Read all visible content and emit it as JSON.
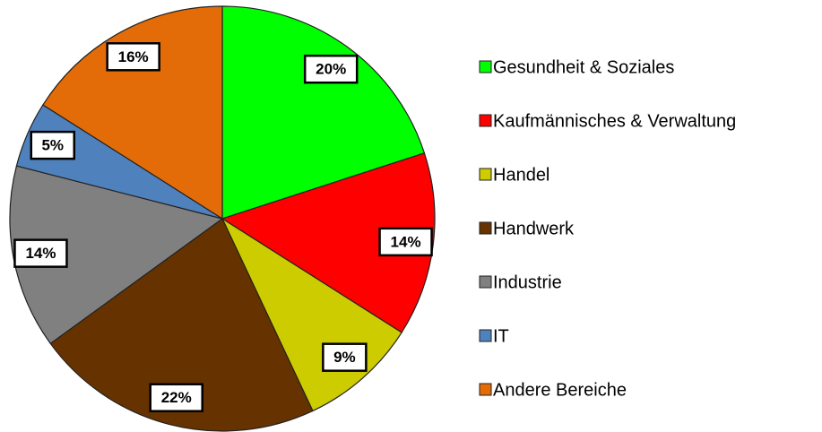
{
  "chart_data": {
    "type": "pie",
    "categories": [
      "Gesundheit & Soziales",
      "Kaufmännisches & Verwaltung",
      "Handel",
      "Handwerk",
      "Industrie",
      "IT",
      "Andere Bereiche"
    ],
    "values": [
      20,
      14,
      9,
      22,
      14,
      5,
      16
    ],
    "value_labels": [
      "20%",
      "14%",
      "9%",
      "22%",
      "14%",
      "5%",
      "16%"
    ],
    "colors": [
      "#00ff00",
      "#ff0000",
      "#cccc00",
      "#663300",
      "#808080",
      "#4f81bd",
      "#e36c09"
    ],
    "legend": "right"
  }
}
